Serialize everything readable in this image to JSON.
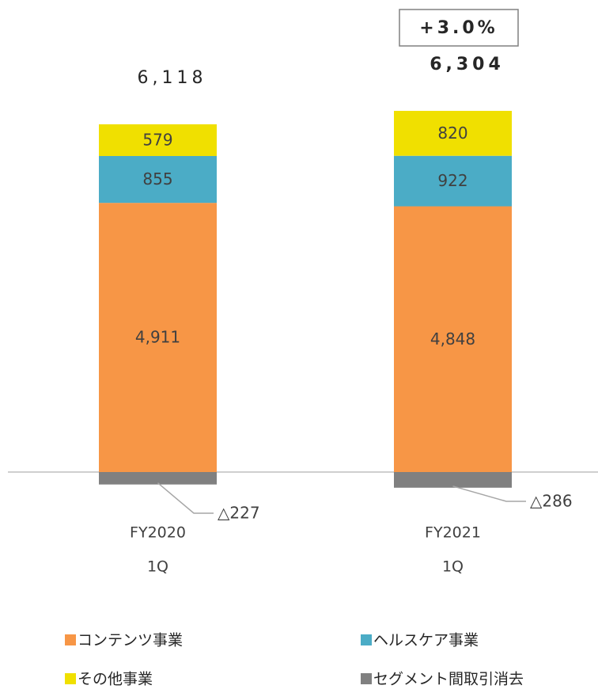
{
  "chart_data": {
    "type": "bar",
    "stacked": true,
    "categories": [
      [
        "FY2020",
        "1Q"
      ],
      [
        "FY2021",
        "1Q"
      ]
    ],
    "series": [
      {
        "name": "コンテンツ事業",
        "color": "#f79646",
        "values": [
          4911,
          4848
        ],
        "value_labels": [
          "4,911",
          "4,848"
        ]
      },
      {
        "name": "ヘルスケア事業",
        "color": "#4bacc6",
        "values": [
          855,
          922
        ]
      },
      {
        "name": "その他事業",
        "color": "#f0e000",
        "values": [
          579,
          820
        ]
      },
      {
        "name": "セグメント間取引消去",
        "color": "#808080",
        "values": [
          -227,
          -286
        ],
        "value_labels": [
          "△227",
          "△286"
        ]
      }
    ],
    "totals": [
      6118,
      6304
    ],
    "total_labels": [
      "6,118",
      "6,304"
    ],
    "annotation": "+3.0%"
  }
}
